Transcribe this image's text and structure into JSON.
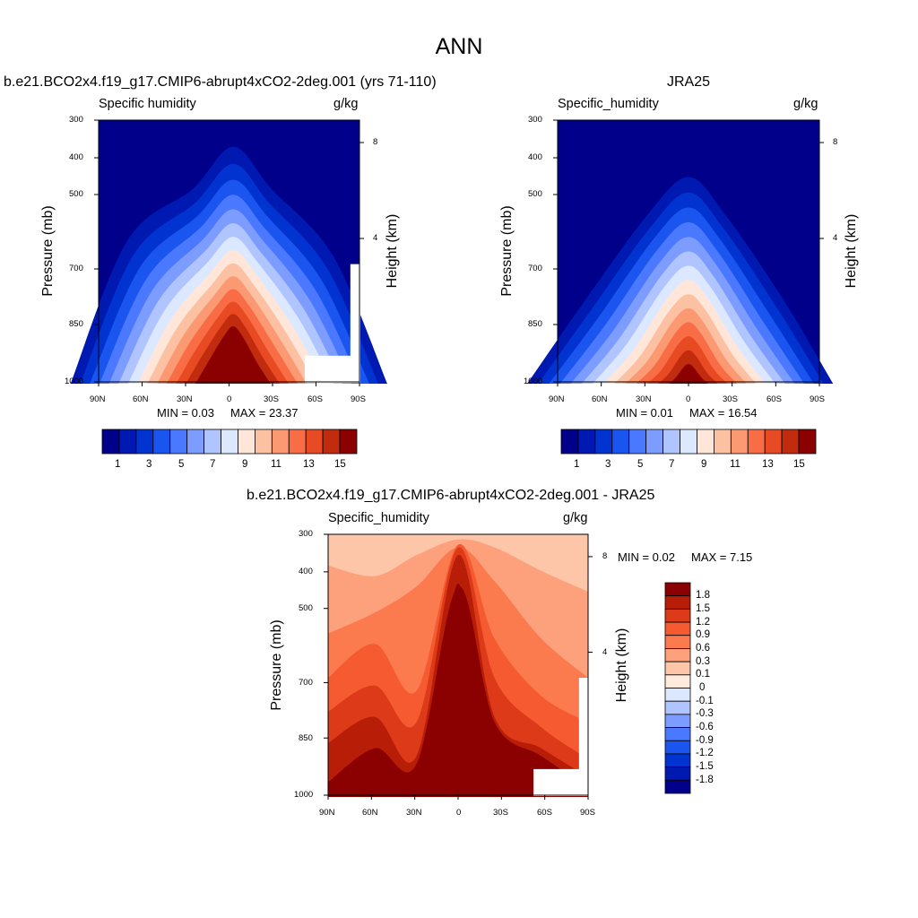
{
  "figure": {
    "title": "ANN",
    "y_axis_label": "Pressure (mb)",
    "y2_axis_label": "Height (km)",
    "x_ticks": [
      "90N",
      "60N",
      "30N",
      "0",
      "30S",
      "60S",
      "90S"
    ],
    "y_ticks": [
      "300",
      "400",
      "500",
      "700",
      "850",
      "1000"
    ],
    "y2_ticks": [
      "8",
      "4"
    ]
  },
  "chart_data": [
    {
      "type": "heatmap",
      "title": "b.e21.BCO2x4.f19_g17.CMIP6-abrupt4xCO2-2deg.001 (yrs 71-110)",
      "variable": "Specific humidity",
      "units": "g/kg",
      "xlabel": "",
      "ylabel": "Pressure (mb)",
      "y2label": "Height (km)",
      "x_ticks": [
        "90N",
        "60N",
        "30N",
        "0",
        "30S",
        "60S",
        "90S"
      ],
      "y_ticks": [
        300,
        400,
        500,
        700,
        850,
        1000
      ],
      "y2_ticks": [
        8,
        4
      ],
      "min_label": "MIN =   0.03",
      "max_label": "MAX =  23.37",
      "min": 0.03,
      "max": 23.37,
      "colorbar_ticks": [
        "1",
        "3",
        "5",
        "7",
        "9",
        "11",
        "13",
        "15"
      ],
      "colorbar_colors": [
        "#00008b",
        "#0019b0",
        "#0033d0",
        "#1a55f0",
        "#4a78ff",
        "#7c9cff",
        "#b0c4ff",
        "#dce8ff",
        "#ffe6d9",
        "#fcc0a2",
        "#fb9a72",
        "#f86d45",
        "#e84a23",
        "#c22c0e",
        "#8b0000"
      ]
    },
    {
      "type": "heatmap",
      "title": "JRA25",
      "variable": "Specific_humidity",
      "units": "g/kg",
      "xlabel": "",
      "ylabel": "Pressure (mb)",
      "y2label": "Height (km)",
      "x_ticks": [
        "90N",
        "60N",
        "30N",
        "0",
        "30S",
        "60S",
        "90S"
      ],
      "y_ticks": [
        300,
        400,
        500,
        700,
        850,
        1000
      ],
      "y2_ticks": [
        8,
        4
      ],
      "min_label": "MIN =   0.01",
      "max_label": "MAX =  16.54",
      "min": 0.01,
      "max": 16.54,
      "colorbar_ticks": [
        "1",
        "3",
        "5",
        "7",
        "9",
        "11",
        "13",
        "15"
      ],
      "colorbar_colors": [
        "#00008b",
        "#0019b0",
        "#0033d0",
        "#1a55f0",
        "#4a78ff",
        "#7c9cff",
        "#b0c4ff",
        "#dce8ff",
        "#ffe6d9",
        "#fcc0a2",
        "#fb9a72",
        "#f86d45",
        "#e84a23",
        "#c22c0e",
        "#8b0000"
      ]
    },
    {
      "type": "heatmap",
      "title": "b.e21.BCO2x4.f19_g17.CMIP6-abrupt4xCO2-2deg.001 - JRA25",
      "variable": "Specific_humidity",
      "units": "g/kg",
      "xlabel": "",
      "ylabel": "Pressure (mb)",
      "y2label": "Height (km)",
      "x_ticks": [
        "90N",
        "60N",
        "30N",
        "0",
        "30S",
        "60S",
        "90S"
      ],
      "y_ticks": [
        300,
        400,
        500,
        700,
        850,
        1000
      ],
      "y2_ticks": [
        8,
        4
      ],
      "min_label": "MIN =   0.02",
      "max_label": "MAX =   7.15",
      "min": 0.02,
      "max": 7.15,
      "colorbar_ticks": [
        "1.8",
        "1.5",
        "1.2",
        "0.9",
        "0.6",
        "0.3",
        "0.1",
        "0",
        "-0.1",
        "-0.3",
        "-0.6",
        "-0.9",
        "-1.2",
        "-1.5",
        "-1.8"
      ],
      "colorbar_colors": [
        "#8b0000",
        "#b81d08",
        "#dc3a18",
        "#f55a30",
        "#fb7a4e",
        "#fca17c",
        "#fdc6a8",
        "#ffeadc",
        "#dce8ff",
        "#b0c4ff",
        "#7c9cff",
        "#4a78ff",
        "#1a55f0",
        "#0033d0",
        "#0019b0",
        "#00008b"
      ]
    }
  ]
}
